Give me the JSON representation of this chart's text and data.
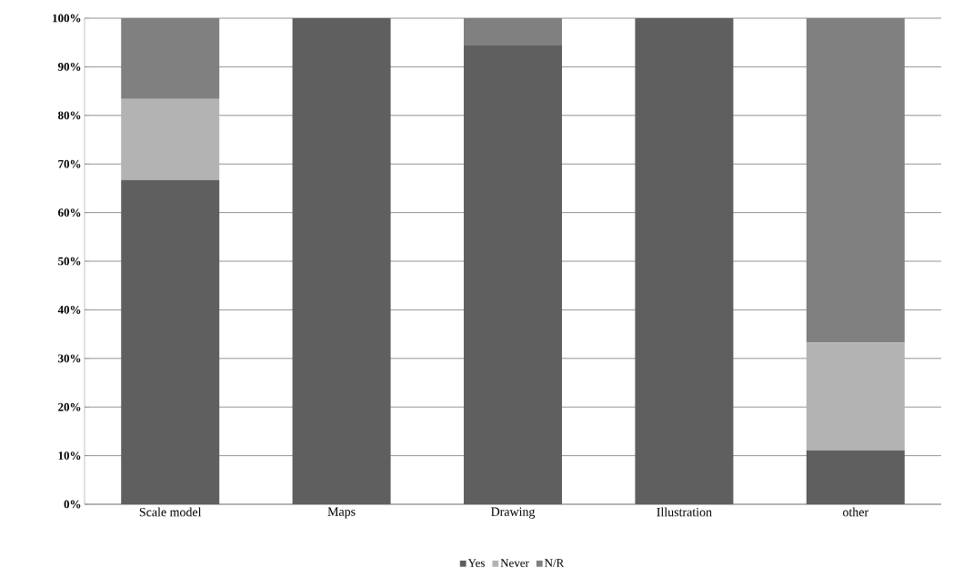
{
  "chart_data": {
    "type": "bar",
    "stacked": true,
    "categories": [
      "Scale model",
      "Maps",
      "Drawing",
      "Illustration",
      "other"
    ],
    "series": [
      {
        "name": "Yes",
        "color": "#5f5f5f",
        "values": [
          66.7,
          100,
          94.4,
          100,
          11.1
        ]
      },
      {
        "name": "Never",
        "color": "#b3b3b3",
        "values": [
          16.7,
          0,
          0,
          0,
          22.2
        ]
      },
      {
        "name": "N/R",
        "color": "#808080",
        "values": [
          16.6,
          0,
          5.6,
          0,
          66.7
        ]
      }
    ],
    "ylim": [
      0,
      100
    ],
    "yticks": [
      {
        "value": 0,
        "label": "0%"
      },
      {
        "value": 10,
        "label": "10%"
      },
      {
        "value": 20,
        "label": "20%"
      },
      {
        "value": 30,
        "label": "30%"
      },
      {
        "value": 40,
        "label": "40%"
      },
      {
        "value": 50,
        "label": "50%"
      },
      {
        "value": 60,
        "label": "60%"
      },
      {
        "value": 70,
        "label": "70%"
      },
      {
        "value": 80,
        "label": "80%"
      },
      {
        "value": 90,
        "label": "90%"
      },
      {
        "value": 100,
        "label": "100%"
      }
    ],
    "grid": "y",
    "legend": "bottom"
  }
}
